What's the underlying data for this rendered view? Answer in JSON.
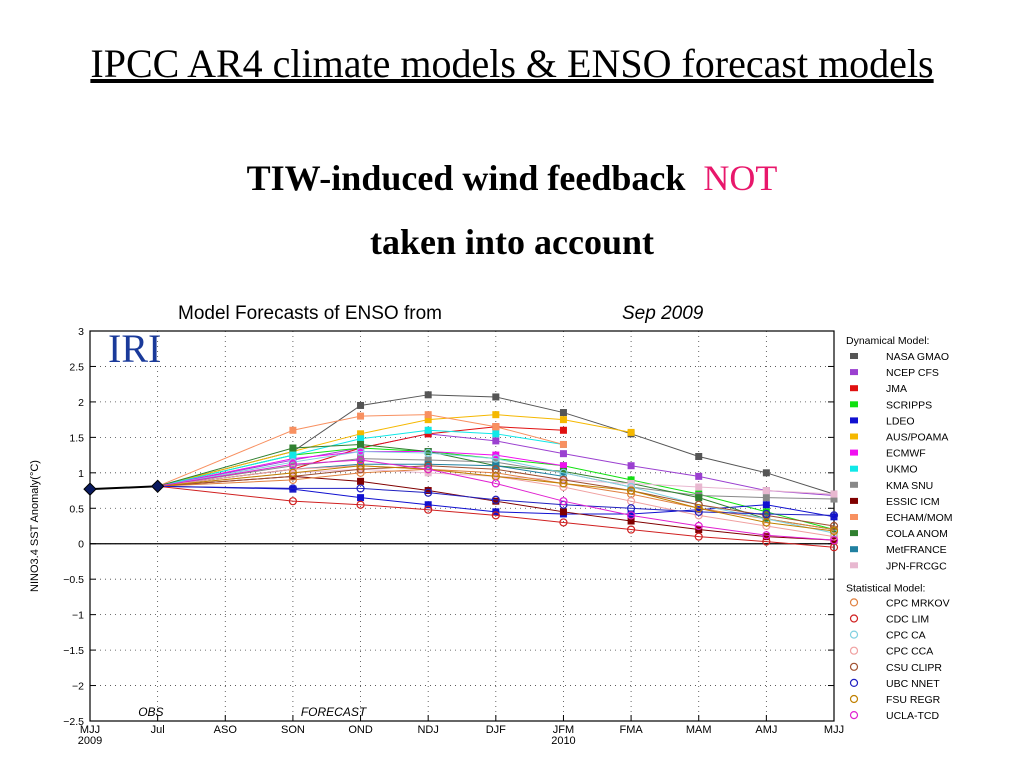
{
  "slide": {
    "title": "IPCC AR4 climate models & ENSO forecast models",
    "subtitle_line1": "TIW-induced wind feedback",
    "subtitle_emph": "NOT",
    "subtitle_line2": "taken into account"
  },
  "logo": "IRI",
  "colors": {
    "emphasis": "#e8176b",
    "axis": "#000000"
  },
  "chart_data": {
    "type": "line",
    "title_prefix": "Model Forecasts of ENSO from",
    "title_date": "Sep 2009",
    "ylabel": "NINO3.4 SST Anomaly(°C)",
    "xlabel": "",
    "ylim": [
      -2.5,
      3
    ],
    "yticks": [
      -2.5,
      -2,
      -1.5,
      -1,
      -0.5,
      0,
      0.5,
      1,
      1.5,
      2,
      2.5,
      3
    ],
    "ytick_labels": [
      "−2.5",
      "−2",
      "−1.5",
      "−1",
      "−0.5",
      "0",
      "0.5",
      "1",
      "1.5",
      "2",
      "2.5",
      "3"
    ],
    "categories": [
      "MJJ",
      "Jul",
      "ASO",
      "SON",
      "OND",
      "NDJ",
      "DJF",
      "JFM",
      "FMA",
      "MAM",
      "AMJ",
      "MJJ"
    ],
    "year_labels": [
      {
        "index": 0,
        "text": "2009"
      },
      {
        "index": 7,
        "text": "2010"
      }
    ],
    "period_labels": [
      {
        "text": "OBS",
        "at": 0.9
      },
      {
        "text": "FORECAST",
        "at": 3.6
      }
    ],
    "grid": "dotted",
    "legend_placement": "right",
    "observed": {
      "x_index": [
        0,
        1
      ],
      "values": [
        0.77,
        0.81
      ],
      "color": "#000000"
    },
    "forecast_start": {
      "x_index": 1,
      "value": 0.81
    },
    "dynamical_header": "Dynamical Model:",
    "statistical_header": "Statistical Model:",
    "dynamical_series": [
      {
        "name": "NASA GMAO",
        "color": "#555555",
        "values": [
          1.3,
          1.95,
          2.1,
          2.07,
          1.85,
          1.55,
          1.23,
          1.0,
          0.7
        ]
      },
      {
        "name": "NCEP CFS",
        "color": "#9b40d0",
        "values": [
          1.18,
          1.35,
          1.55,
          1.45,
          1.27,
          1.1,
          0.95,
          0.75,
          0.68
        ]
      },
      {
        "name": "JMA",
        "color": "#e01010",
        "values": [
          1.05,
          1.35,
          1.55,
          1.65,
          1.6
        ]
      },
      {
        "name": "SCRIPPS",
        "color": "#10e010",
        "values": [
          1.25,
          1.35,
          1.3,
          1.2,
          1.1,
          0.9,
          0.7,
          0.45,
          0.2
        ]
      },
      {
        "name": "LDEO",
        "color": "#1010d0",
        "values": [
          0.77,
          0.65,
          0.55,
          0.45,
          0.42,
          0.42,
          0.48,
          0.55,
          0.38
        ]
      },
      {
        "name": "AUS/POAMA",
        "color": "#f5b800",
        "values": [
          1.3,
          1.55,
          1.75,
          1.82,
          1.75,
          1.57
        ]
      },
      {
        "name": "ECMWF",
        "color": "#f010f0",
        "values": [
          1.2,
          1.3,
          1.3,
          1.25,
          1.1
        ]
      },
      {
        "name": "UKMO",
        "color": "#10e8e8",
        "values": [
          1.25,
          1.48,
          1.6,
          1.55,
          1.4
        ]
      },
      {
        "name": "KMA SNU",
        "color": "#888888",
        "values": [
          1.1,
          1.2,
          1.18,
          1.15,
          1.0,
          0.8,
          0.68,
          0.65,
          0.63
        ]
      },
      {
        "name": "ESSIC ICM",
        "color": "#800000",
        "values": [
          0.95,
          0.88,
          0.75,
          0.6,
          0.45,
          0.32,
          0.2,
          0.1,
          0.05
        ]
      },
      {
        "name": "ECHAM/MOM",
        "color": "#f89060",
        "values": [
          1.6,
          1.8,
          1.82,
          1.65,
          1.4
        ]
      },
      {
        "name": "COLA ANOM",
        "color": "#308030",
        "values": [
          1.35,
          1.4,
          1.3,
          1.1,
          1.02,
          0.85,
          0.65,
          0.35,
          0.2
        ]
      },
      {
        "name": "MetFRANCE",
        "color": "#2080a0",
        "values": [
          1.05,
          1.12,
          1.12,
          1.1,
          0.95
        ]
      },
      {
        "name": "JPN-FRCGC",
        "color": "#e8b8d0",
        "values": [
          1.0,
          1.05,
          1.0,
          0.95,
          0.9,
          0.85,
          0.8,
          0.75,
          0.7
        ]
      }
    ],
    "statistical_series": [
      {
        "name": "CPC MRKOV",
        "color": "#e08040",
        "values": [
          0.9,
          1.0,
          1.05,
          1.0,
          0.85,
          0.7,
          0.5,
          0.35,
          0.2
        ]
      },
      {
        "name": "CDC LIM",
        "color": "#d02020",
        "values": [
          0.6,
          0.55,
          0.48,
          0.4,
          0.3,
          0.2,
          0.1,
          0.03,
          -0.05
        ]
      },
      {
        "name": "CPC CA",
        "color": "#80d0e0",
        "values": [
          1.15,
          1.3,
          1.28,
          1.2,
          1.0,
          0.8,
          0.55,
          0.35,
          0.15
        ]
      },
      {
        "name": "CPC CCA",
        "color": "#f0a0a0",
        "values": [
          1.05,
          1.1,
          1.05,
          0.95,
          0.8,
          0.6,
          0.4,
          0.25,
          0.1
        ]
      },
      {
        "name": "CSU CLIPR",
        "color": "#a05030",
        "values": [
          0.95,
          1.05,
          1.1,
          1.05,
          0.9,
          0.75,
          0.55,
          0.4,
          0.25
        ]
      },
      {
        "name": "UBC NNET",
        "color": "#2020c0",
        "values": [
          0.78,
          0.78,
          0.72,
          0.62,
          0.55,
          0.5,
          0.45,
          0.42,
          0.4
        ]
      },
      {
        "name": "FSU REGR",
        "color": "#c08000",
        "values": [
          1.0,
          1.1,
          1.05,
          0.95,
          0.85,
          0.75,
          0.5,
          0.3,
          0.18
        ]
      },
      {
        "name": "UCLA-TCD",
        "color": "#e020d0",
        "values": [
          1.12,
          1.18,
          1.05,
          0.85,
          0.6,
          0.4,
          0.25,
          0.12,
          0.05
        ]
      }
    ]
  }
}
